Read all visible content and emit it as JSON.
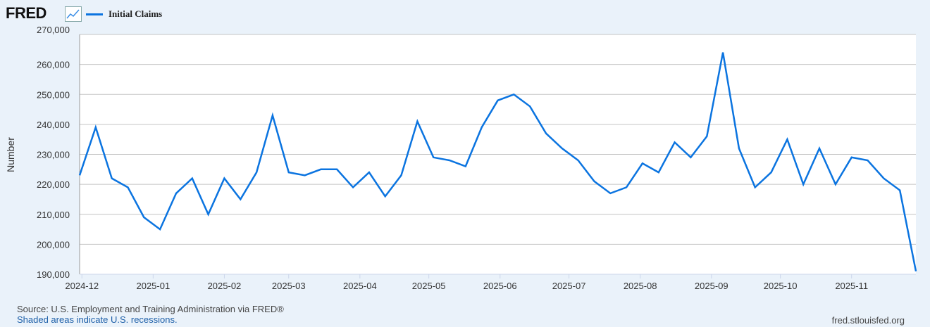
{
  "header": {
    "logo": "FRED",
    "logo_icon": "chart-line-icon"
  },
  "chart_data": {
    "type": "line",
    "title": "",
    "xlabel": "",
    "ylabel": "Number",
    "ylim": [
      190000,
      270000
    ],
    "yticks": [
      190000,
      200000,
      210000,
      220000,
      230000,
      240000,
      250000,
      260000,
      270000
    ],
    "ytick_labels": [
      "190,000",
      "200,000",
      "210,000",
      "220,000",
      "230,000",
      "240,000",
      "250,000",
      "260,000",
      "270,000"
    ],
    "xticks": [
      "2024-12-01",
      "2025-01-01",
      "2025-02-01",
      "2025-03-01",
      "2025-04-01",
      "2025-05-01",
      "2025-06-01",
      "2025-07-01",
      "2025-08-01",
      "2025-09-01",
      "2025-10-01",
      "2025-11-01"
    ],
    "xtick_labels": [
      "2024-12",
      "2025-01",
      "2025-02",
      "2025-03",
      "2025-04",
      "2025-05",
      "2025-06",
      "2025-07",
      "2025-08",
      "2025-09",
      "2025-10",
      "2025-11"
    ],
    "grid": true,
    "legend_placement": "top-left",
    "series": [
      {
        "name": "Initial Claims",
        "color": "#0b74e0",
        "start": "2024-11-30",
        "frequency": "weekly",
        "values": [
          223000,
          239000,
          222000,
          219000,
          209000,
          205000,
          217000,
          222000,
          210000,
          222000,
          215000,
          224000,
          243000,
          224000,
          223000,
          225000,
          225000,
          219000,
          224000,
          216000,
          223000,
          241000,
          229000,
          228000,
          226000,
          239000,
          248000,
          250000,
          246000,
          237000,
          232000,
          228000,
          221000,
          217000,
          219000,
          227000,
          224000,
          234000,
          229000,
          236000,
          264000,
          232000,
          219000,
          224000,
          235000,
          220000,
          232000,
          220000,
          229000,
          228000,
          222000,
          218000,
          191000
        ]
      }
    ]
  },
  "footer": {
    "source": "Source: U.S. Employment and Training Administration via FRED®",
    "recession_note": "Shaded areas indicate U.S. recessions.",
    "site": "fred.stlouisfed.org"
  }
}
